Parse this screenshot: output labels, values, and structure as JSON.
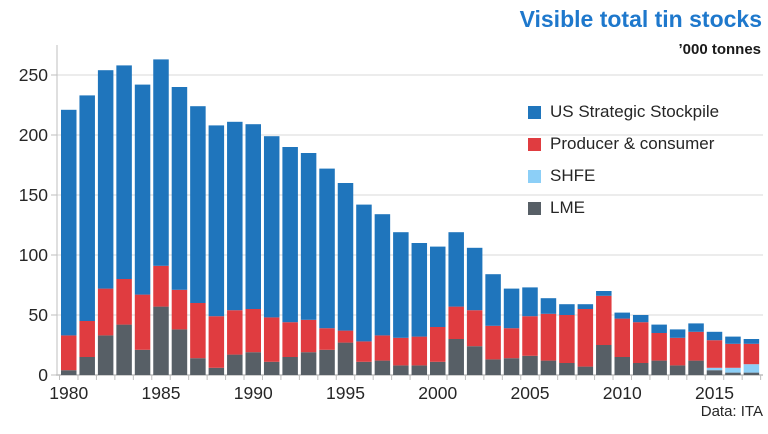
{
  "header": {
    "title": "Visible total tin stocks",
    "unit_label": "’000 tonnes",
    "title_color": "#1E78CC"
  },
  "source": {
    "label": "Data: ITA"
  },
  "legend": {
    "position": "top-right-inside",
    "items": [
      {
        "name": "US Strategic Stockpile",
        "color": "#1F75BC"
      },
      {
        "name": "Producer & consumer",
        "color": "#E03C40"
      },
      {
        "name": "SHFE",
        "color": "#8CCFF7"
      },
      {
        "name": "LME",
        "color": "#575F66"
      }
    ]
  },
  "axes": {
    "grid_color": "#D9D9D9",
    "axis_color": "#BFBFBF",
    "label_color": "#262626"
  },
  "chart_data": {
    "type": "bar",
    "stacked": true,
    "title": "Visible total tin stocks",
    "xlabel": "",
    "ylabel": "'000 tonnes",
    "ylim": [
      0,
      275
    ],
    "yticks": [
      0,
      50,
      100,
      150,
      200,
      250
    ],
    "grid": true,
    "legend_position": "top-right-inside",
    "x": [
      1980,
      1981,
      1982,
      1983,
      1984,
      1985,
      1986,
      1987,
      1988,
      1989,
      1990,
      1991,
      1992,
      1993,
      1994,
      1995,
      1996,
      1997,
      1998,
      1999,
      2000,
      2001,
      2002,
      2003,
      2004,
      2005,
      2006,
      2007,
      2008,
      2009,
      2010,
      2011,
      2012,
      2013,
      2014,
      2015,
      2016,
      2017
    ],
    "xticks": [
      1980,
      1985,
      1990,
      1995,
      2000,
      2005,
      2010,
      2015
    ],
    "stack_order_note": "series listed bottom-to-top",
    "series": [
      {
        "name": "LME",
        "color": "#575F66",
        "values": [
          4,
          15,
          33,
          42,
          21,
          57,
          38,
          14,
          6,
          17,
          19,
          11,
          15,
          19,
          21,
          27,
          11,
          12,
          8,
          8,
          11,
          30,
          24,
          13,
          14,
          16,
          12,
          10,
          7,
          25,
          15,
          10,
          12,
          8,
          12,
          4,
          2,
          2
        ]
      },
      {
        "name": "SHFE",
        "color": "#8CCFF7",
        "values": [
          0,
          0,
          0,
          0,
          0,
          0,
          0,
          0,
          0,
          0,
          0,
          0,
          0,
          0,
          0,
          0,
          0,
          0,
          0,
          0,
          0,
          0,
          0,
          0,
          0,
          0,
          0,
          0,
          0,
          0,
          0,
          0,
          0,
          0,
          0,
          2,
          4,
          7
        ]
      },
      {
        "name": "Producer & consumer",
        "color": "#E03C40",
        "values": [
          29,
          30,
          39,
          38,
          46,
          34,
          33,
          46,
          43,
          37,
          36,
          37,
          29,
          27,
          18,
          10,
          17,
          21,
          23,
          24,
          29,
          27,
          30,
          28,
          25,
          33,
          39,
          40,
          48,
          41,
          32,
          34,
          23,
          23,
          24,
          23,
          20,
          17
        ]
      },
      {
        "name": "US Strategic Stockpile",
        "color": "#1F75BC",
        "values": [
          188,
          188,
          182,
          178,
          175,
          172,
          169,
          164,
          159,
          157,
          154,
          151,
          146,
          139,
          133,
          123,
          114,
          101,
          88,
          78,
          67,
          62,
          52,
          43,
          33,
          24,
          13,
          9,
          4,
          4,
          5,
          6,
          7,
          7,
          7,
          7,
          6,
          4
        ]
      }
    ],
    "totals": [
      221,
      233,
      254,
      258,
      242,
      263,
      240,
      224,
      208,
      211,
      209,
      199,
      190,
      185,
      172,
      160,
      142,
      134,
      119,
      110,
      107,
      119,
      106,
      84,
      72,
      73,
      64,
      59,
      59,
      70,
      52,
      50,
      42,
      38,
      43,
      36,
      32,
      30
    ]
  }
}
